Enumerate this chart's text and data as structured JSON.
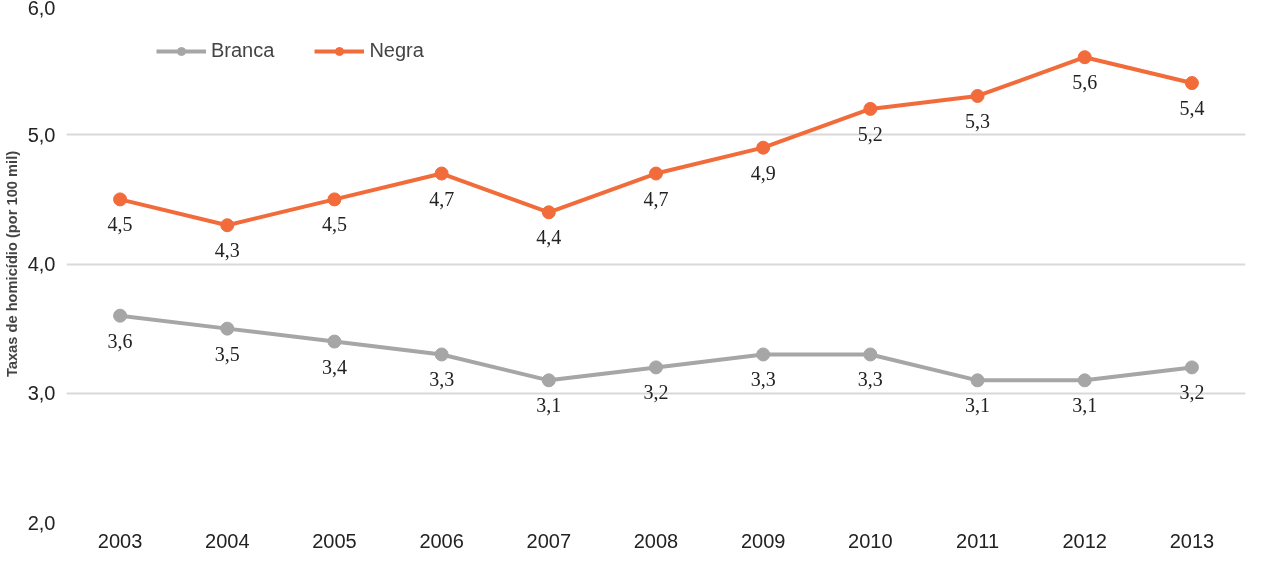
{
  "chart_data": {
    "type": "line",
    "ylabel": "Taxas de homicídio (por 100 mil)",
    "categories": [
      "2003",
      "2004",
      "2005",
      "2006",
      "2007",
      "2008",
      "2009",
      "2010",
      "2011",
      "2012",
      "2013"
    ],
    "series": [
      {
        "name": "Branca",
        "color": "#a6a6a6",
        "values": [
          3.6,
          3.5,
          3.4,
          3.3,
          3.1,
          3.2,
          3.3,
          3.3,
          3.1,
          3.1,
          3.2
        ],
        "value_labels": [
          "3,6",
          "3,5",
          "3,4",
          "3,3",
          "3,1",
          "3,2",
          "3,3",
          "3,3",
          "3,1",
          "3,1",
          "3,2"
        ]
      },
      {
        "name": "Negra",
        "color": "#f26b3a",
        "values": [
          4.5,
          4.3,
          4.5,
          4.7,
          4.4,
          4.7,
          4.9,
          5.2,
          5.3,
          5.6,
          5.4
        ],
        "value_labels": [
          "4,5",
          "4,3",
          "4,5",
          "4,7",
          "4,4",
          "4,7",
          "4,9",
          "5,2",
          "5,3",
          "5,6",
          "5,4"
        ]
      }
    ],
    "ylim": [
      2,
      6
    ],
    "yticks": [
      {
        "value": 2,
        "label": "2,0"
      },
      {
        "value": 3,
        "label": "3,0"
      },
      {
        "value": 4,
        "label": "4,0"
      },
      {
        "value": 5,
        "label": "5,0"
      },
      {
        "value": 6,
        "label": "6,0"
      }
    ],
    "grid": "y",
    "legend": "top left",
    "marker": "circle",
    "line_style": "solid"
  }
}
